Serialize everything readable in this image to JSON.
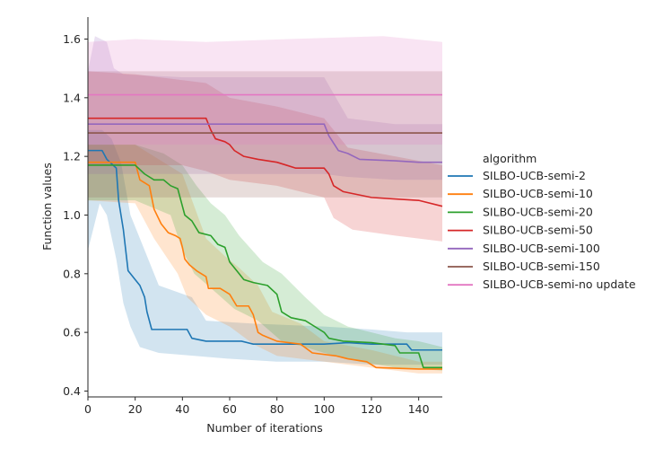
{
  "chart_data": {
    "type": "line",
    "xlabel": "Number of iterations",
    "ylabel": "Function values",
    "xlim": [
      0,
      150
    ],
    "ylim": [
      0.38,
      1.675
    ],
    "xticks": [
      0,
      20,
      40,
      60,
      80,
      100,
      120,
      140
    ],
    "yticks": [
      0.4,
      0.6,
      0.8,
      1.0,
      1.2,
      1.4,
      1.6
    ],
    "ytick_labels": [
      "0.4",
      "0.6",
      "0.8",
      "1.0",
      "1.2",
      "1.4",
      "1.6"
    ],
    "legend_title": "algorithm",
    "series": [
      {
        "name": "SILBO-UCB-semi-2",
        "color": "#1f77b4",
        "points": [
          [
            0,
            1.22
          ],
          [
            6,
            1.22
          ],
          [
            8,
            1.19
          ],
          [
            12,
            1.16
          ],
          [
            13,
            1.05
          ],
          [
            15,
            0.95
          ],
          [
            16,
            0.88
          ],
          [
            17,
            0.81
          ],
          [
            18,
            0.8
          ],
          [
            20,
            0.78
          ],
          [
            22,
            0.76
          ],
          [
            24,
            0.72
          ],
          [
            25,
            0.67
          ],
          [
            27,
            0.61
          ],
          [
            30,
            0.61
          ],
          [
            42,
            0.61
          ],
          [
            44,
            0.58
          ],
          [
            50,
            0.57
          ],
          [
            65,
            0.57
          ],
          [
            70,
            0.56
          ],
          [
            80,
            0.56
          ],
          [
            100,
            0.56
          ],
          [
            110,
            0.565
          ],
          [
            120,
            0.56
          ],
          [
            135,
            0.56
          ],
          [
            137,
            0.54
          ],
          [
            150,
            0.54
          ]
        ],
        "lower": [
          [
            0,
            0.88
          ],
          [
            5,
            1.04
          ],
          [
            8,
            1.0
          ],
          [
            12,
            0.85
          ],
          [
            15,
            0.7
          ],
          [
            18,
            0.62
          ],
          [
            22,
            0.55
          ],
          [
            30,
            0.53
          ],
          [
            45,
            0.52
          ],
          [
            60,
            0.51
          ],
          [
            80,
            0.5
          ],
          [
            100,
            0.5
          ],
          [
            120,
            0.49
          ],
          [
            150,
            0.49
          ]
        ],
        "upper": [
          [
            0,
            1.29
          ],
          [
            6,
            1.29
          ],
          [
            10,
            1.26
          ],
          [
            14,
            1.18
          ],
          [
            18,
            1.0
          ],
          [
            24,
            0.88
          ],
          [
            30,
            0.76
          ],
          [
            44,
            0.72
          ],
          [
            50,
            0.64
          ],
          [
            70,
            0.63
          ],
          [
            100,
            0.62
          ],
          [
            120,
            0.61
          ],
          [
            135,
            0.6
          ],
          [
            150,
            0.6
          ]
        ]
      },
      {
        "name": "SILBO-UCB-semi-10",
        "color": "#ff7f0e",
        "points": [
          [
            0,
            1.18
          ],
          [
            20,
            1.18
          ],
          [
            22,
            1.12
          ],
          [
            26,
            1.1
          ],
          [
            28,
            1.02
          ],
          [
            31,
            0.97
          ],
          [
            34,
            0.94
          ],
          [
            37,
            0.93
          ],
          [
            39,
            0.92
          ],
          [
            40,
            0.89
          ],
          [
            41,
            0.85
          ],
          [
            43,
            0.83
          ],
          [
            46,
            0.81
          ],
          [
            50,
            0.79
          ],
          [
            51,
            0.75
          ],
          [
            56,
            0.75
          ],
          [
            60,
            0.73
          ],
          [
            63,
            0.69
          ],
          [
            68,
            0.69
          ],
          [
            70,
            0.66
          ],
          [
            72,
            0.6
          ],
          [
            74,
            0.59
          ],
          [
            80,
            0.57
          ],
          [
            90,
            0.56
          ],
          [
            95,
            0.53
          ],
          [
            105,
            0.52
          ],
          [
            110,
            0.51
          ],
          [
            118,
            0.5
          ],
          [
            120,
            0.49
          ],
          [
            122,
            0.48
          ],
          [
            140,
            0.475
          ],
          [
            150,
            0.475
          ]
        ],
        "lower": [
          [
            0,
            1.05
          ],
          [
            20,
            1.04
          ],
          [
            28,
            0.92
          ],
          [
            38,
            0.8
          ],
          [
            42,
            0.72
          ],
          [
            50,
            0.66
          ],
          [
            60,
            0.62
          ],
          [
            70,
            0.56
          ],
          [
            80,
            0.52
          ],
          [
            100,
            0.5
          ],
          [
            120,
            0.48
          ],
          [
            140,
            0.46
          ],
          [
            150,
            0.46
          ]
        ],
        "upper": [
          [
            0,
            1.24
          ],
          [
            20,
            1.24
          ],
          [
            28,
            1.2
          ],
          [
            40,
            1.14
          ],
          [
            50,
            0.92
          ],
          [
            58,
            0.86
          ],
          [
            64,
            0.82
          ],
          [
            72,
            0.76
          ],
          [
            78,
            0.67
          ],
          [
            90,
            0.63
          ],
          [
            100,
            0.57
          ],
          [
            120,
            0.54
          ],
          [
            140,
            0.5
          ],
          [
            150,
            0.5
          ]
        ]
      },
      {
        "name": "SILBO-UCB-semi-20",
        "color": "#2ca02c",
        "points": [
          [
            0,
            1.17
          ],
          [
            20,
            1.17
          ],
          [
            24,
            1.14
          ],
          [
            28,
            1.12
          ],
          [
            32,
            1.12
          ],
          [
            35,
            1.1
          ],
          [
            38,
            1.09
          ],
          [
            40,
            1.03
          ],
          [
            41,
            1.0
          ],
          [
            44,
            0.98
          ],
          [
            47,
            0.94
          ],
          [
            52,
            0.93
          ],
          [
            55,
            0.9
          ],
          [
            58,
            0.89
          ],
          [
            60,
            0.84
          ],
          [
            63,
            0.81
          ],
          [
            66,
            0.78
          ],
          [
            70,
            0.77
          ],
          [
            76,
            0.76
          ],
          [
            80,
            0.73
          ],
          [
            82,
            0.67
          ],
          [
            86,
            0.65
          ],
          [
            92,
            0.64
          ],
          [
            98,
            0.61
          ],
          [
            100,
            0.6
          ],
          [
            102,
            0.58
          ],
          [
            108,
            0.57
          ],
          [
            120,
            0.565
          ],
          [
            130,
            0.555
          ],
          [
            132,
            0.53
          ],
          [
            140,
            0.53
          ],
          [
            142,
            0.48
          ],
          [
            150,
            0.48
          ]
        ],
        "lower": [
          [
            0,
            1.05
          ],
          [
            20,
            1.05
          ],
          [
            35,
            1.0
          ],
          [
            40,
            0.88
          ],
          [
            45,
            0.8
          ],
          [
            55,
            0.73
          ],
          [
            62,
            0.68
          ],
          [
            72,
            0.64
          ],
          [
            82,
            0.57
          ],
          [
            92,
            0.55
          ],
          [
            100,
            0.53
          ],
          [
            115,
            0.5
          ],
          [
            130,
            0.48
          ],
          [
            150,
            0.47
          ]
        ],
        "upper": [
          [
            0,
            1.24
          ],
          [
            20,
            1.24
          ],
          [
            32,
            1.21
          ],
          [
            40,
            1.17
          ],
          [
            46,
            1.1
          ],
          [
            52,
            1.04
          ],
          [
            58,
            1.0
          ],
          [
            64,
            0.93
          ],
          [
            74,
            0.84
          ],
          [
            82,
            0.8
          ],
          [
            92,
            0.72
          ],
          [
            100,
            0.66
          ],
          [
            110,
            0.62
          ],
          [
            130,
            0.58
          ],
          [
            140,
            0.57
          ],
          [
            150,
            0.55
          ]
        ]
      },
      {
        "name": "SILBO-UCB-semi-50",
        "color": "#d62728",
        "points": [
          [
            0,
            1.33
          ],
          [
            50,
            1.33
          ],
          [
            52,
            1.29
          ],
          [
            54,
            1.26
          ],
          [
            58,
            1.25
          ],
          [
            60,
            1.24
          ],
          [
            62,
            1.22
          ],
          [
            66,
            1.2
          ],
          [
            72,
            1.19
          ],
          [
            80,
            1.18
          ],
          [
            84,
            1.17
          ],
          [
            88,
            1.16
          ],
          [
            100,
            1.16
          ],
          [
            102,
            1.14
          ],
          [
            104,
            1.1
          ],
          [
            108,
            1.08
          ],
          [
            114,
            1.07
          ],
          [
            120,
            1.06
          ],
          [
            130,
            1.055
          ],
          [
            140,
            1.05
          ],
          [
            150,
            1.03
          ]
        ],
        "lower": [
          [
            0,
            1.17
          ],
          [
            40,
            1.17
          ],
          [
            50,
            1.15
          ],
          [
            60,
            1.12
          ],
          [
            80,
            1.1
          ],
          [
            100,
            1.06
          ],
          [
            104,
            0.99
          ],
          [
            112,
            0.95
          ],
          [
            130,
            0.93
          ],
          [
            150,
            0.91
          ]
        ],
        "upper": [
          [
            0,
            1.49
          ],
          [
            20,
            1.48
          ],
          [
            30,
            1.47
          ],
          [
            50,
            1.45
          ],
          [
            60,
            1.4
          ],
          [
            80,
            1.37
          ],
          [
            100,
            1.33
          ],
          [
            110,
            1.23
          ],
          [
            130,
            1.2
          ],
          [
            150,
            1.17
          ]
        ]
      },
      {
        "name": "SILBO-UCB-semi-100",
        "color": "#9467bd",
        "points": [
          [
            0,
            1.31
          ],
          [
            100,
            1.31
          ],
          [
            102,
            1.27
          ],
          [
            106,
            1.22
          ],
          [
            110,
            1.21
          ],
          [
            115,
            1.19
          ],
          [
            130,
            1.185
          ],
          [
            140,
            1.18
          ],
          [
            150,
            1.18
          ]
        ],
        "lower": [
          [
            0,
            1.14
          ],
          [
            60,
            1.14
          ],
          [
            100,
            1.14
          ],
          [
            110,
            1.13
          ],
          [
            130,
            1.12
          ],
          [
            150,
            1.12
          ]
        ],
        "upper": [
          [
            0,
            1.49
          ],
          [
            3,
            1.61
          ],
          [
            8,
            1.59
          ],
          [
            11,
            1.5
          ],
          [
            15,
            1.48
          ],
          [
            40,
            1.47
          ],
          [
            100,
            1.47
          ],
          [
            110,
            1.33
          ],
          [
            130,
            1.31
          ],
          [
            150,
            1.31
          ]
        ]
      },
      {
        "name": "SILBO-UCB-semi-150",
        "color": "#8c564b",
        "points": [
          [
            0,
            1.28
          ],
          [
            150,
            1.28
          ]
        ],
        "lower": [
          [
            0,
            1.06
          ],
          [
            150,
            1.06
          ]
        ],
        "upper": [
          [
            0,
            1.49
          ],
          [
            150,
            1.49
          ]
        ]
      },
      {
        "name": "SILBO-UCB-semi-no update",
        "color": "#e377c2",
        "points": [
          [
            0,
            1.41
          ],
          [
            150,
            1.41
          ]
        ],
        "lower": [
          [
            0,
            1.24
          ],
          [
            150,
            1.24
          ]
        ],
        "upper": [
          [
            0,
            1.59
          ],
          [
            20,
            1.6
          ],
          [
            50,
            1.59
          ],
          [
            85,
            1.6
          ],
          [
            125,
            1.61
          ],
          [
            150,
            1.59
          ]
        ]
      }
    ]
  }
}
